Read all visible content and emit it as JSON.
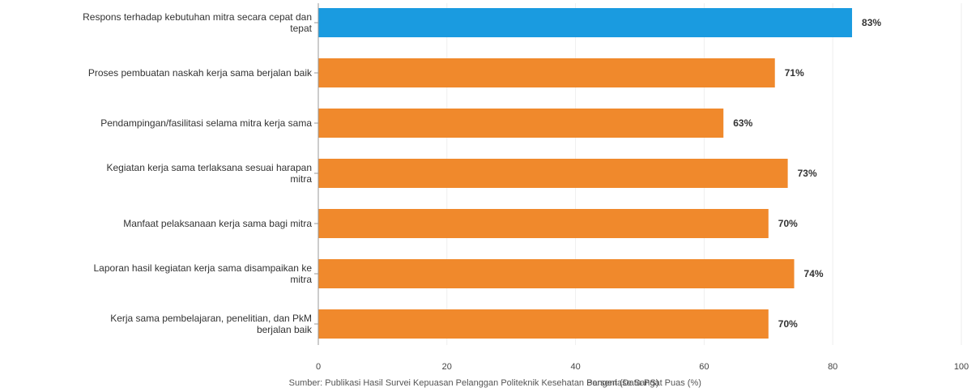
{
  "chart_data": {
    "type": "bar",
    "orientation": "horizontal",
    "categories": [
      [
        "Respons terhadap kebutuhan mitra secara cepat dan",
        "tepat"
      ],
      [
        "Proses pembuatan naskah kerja sama berjalan baik"
      ],
      [
        "Pendampingan/fasilitasi selama mitra kerja sama"
      ],
      [
        "Kegiatan kerja sama terlaksana sesuai harapan",
        "mitra"
      ],
      [
        "Manfaat pelaksanaan kerja sama bagi mitra"
      ],
      [
        "Laporan hasil kegiatan kerja sama disampaikan ke",
        "mitra"
      ],
      [
        "Kerja sama pembelajaran, penelitian, dan PkM",
        "berjalan baik"
      ]
    ],
    "values": [
      83,
      71,
      63,
      73,
      70,
      74,
      70
    ],
    "value_labels": [
      "83%",
      "71%",
      "63%",
      "73%",
      "70%",
      "74%",
      "70%"
    ],
    "highlight_index": 0,
    "colors": {
      "highlight": "#1a9be0",
      "default": "#f0892c",
      "axis": "#999999",
      "grid": "#eeeeee"
    },
    "xlim": [
      0,
      100
    ],
    "xticks": [
      0,
      20,
      40,
      60,
      80,
      100
    ],
    "grid": true,
    "xlabel": "Sumber: Publikasi Hasil Survei Kepuasan Pelanggan Politeknik Kesehatan Bangeri (Data PS)",
    "xlabel_overlay": "Persentase Sangat Puas (%)"
  }
}
